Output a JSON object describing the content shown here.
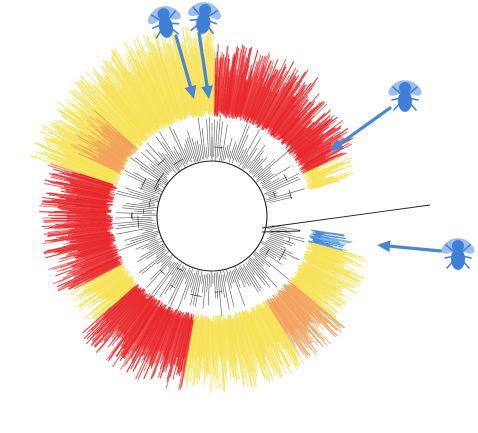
{
  "colors": {
    "background": "#ffffff",
    "red_clade": "#e8262a",
    "yellow_clade": "#f7e256",
    "orange_clade": "#f2a25c",
    "blue_clade": "#3d86d9",
    "branch": "#1f1f1f",
    "arrow": "#4a86d3",
    "fly": "#3f7fd8"
  },
  "tree": {
    "layout": "circular",
    "sectors": [
      {
        "clade": "red-upper",
        "color": "red"
      },
      {
        "clade": "red-upper-right",
        "color": "red"
      },
      {
        "clade": "yellow-highlight-right",
        "color": "yellow"
      },
      {
        "clade": "blue-insect-cluster",
        "color": "blue"
      },
      {
        "clade": "yellow-lower-right",
        "color": "yellow"
      },
      {
        "clade": "orange-lower",
        "color": "orange"
      },
      {
        "clade": "yellow-bottom",
        "color": "yellow"
      },
      {
        "clade": "red-bottom",
        "color": "red"
      },
      {
        "clade": "yellow-strip-left",
        "color": "yellow"
      },
      {
        "clade": "red-left",
        "color": "red"
      },
      {
        "clade": "yellow-upper-left",
        "color": "yellow"
      },
      {
        "clade": "orange-upper-left",
        "color": "orange"
      },
      {
        "clade": "yellow-upper",
        "color": "yellow"
      }
    ]
  },
  "markers": [
    {
      "name": "fly-icon-top-left",
      "icon": "fly-icon"
    },
    {
      "name": "fly-icon-top-center",
      "icon": "fly-icon"
    },
    {
      "name": "fly-icon-right",
      "icon": "fly-icon"
    },
    {
      "name": "fly-icon-lower-right",
      "icon": "fly-icon"
    }
  ]
}
